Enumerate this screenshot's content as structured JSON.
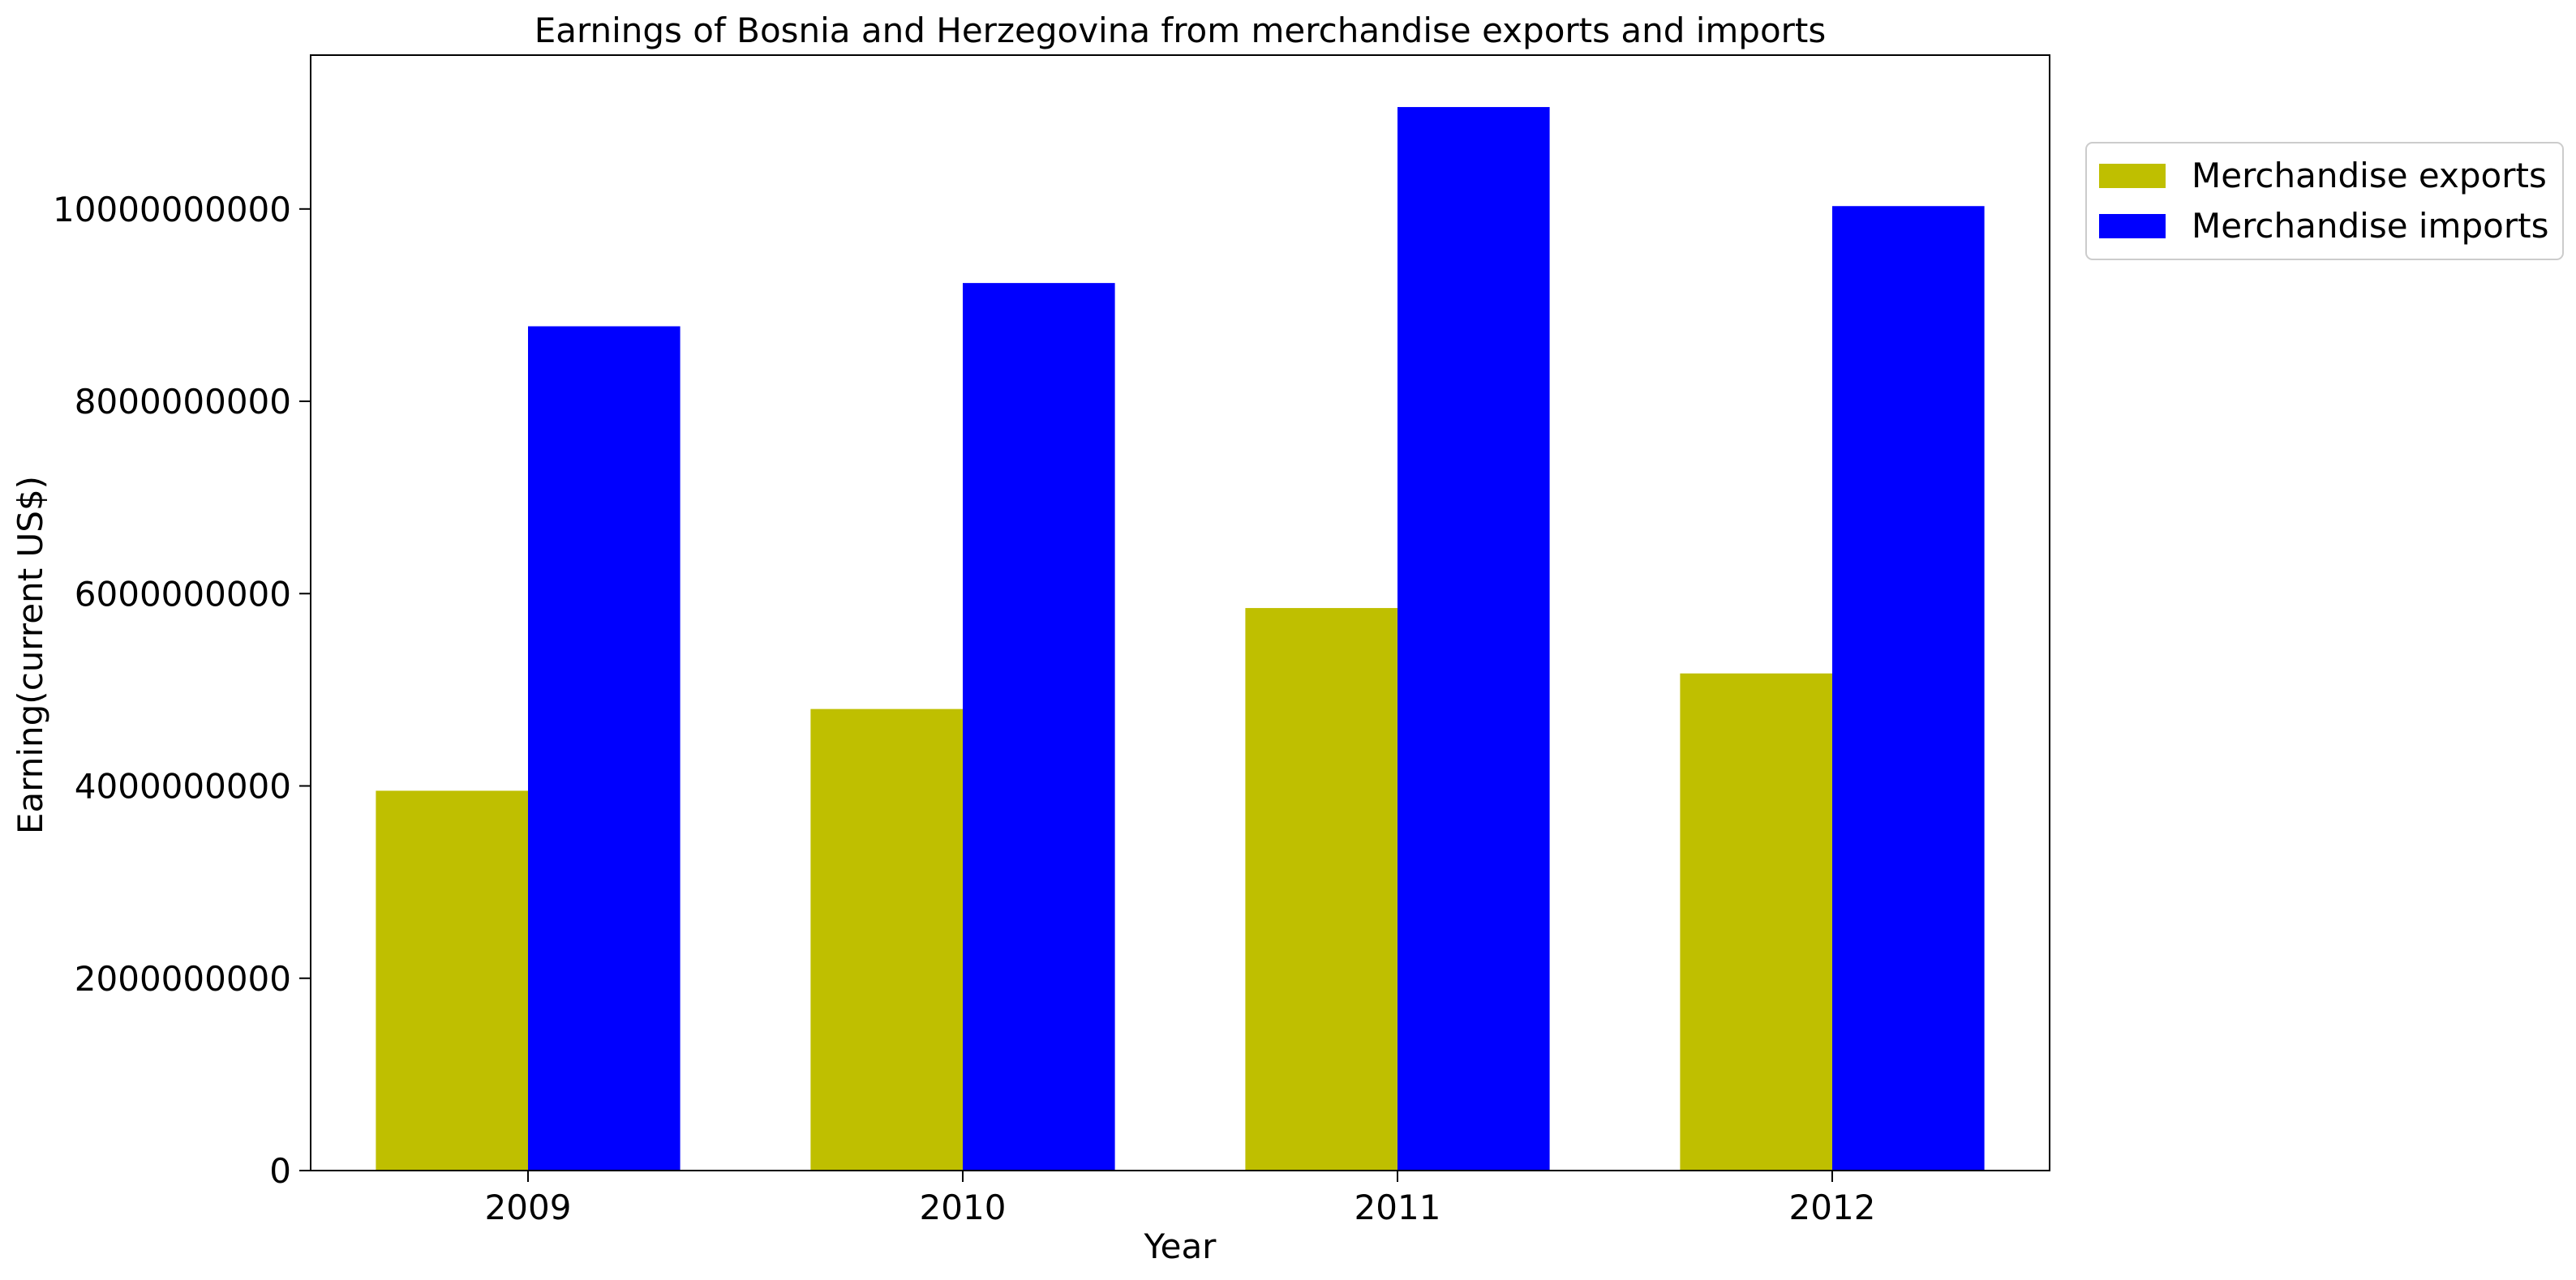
{
  "chart_data": {
    "type": "bar",
    "title": "Earnings of Bosnia and Herzegovina from merchandise exports and imports",
    "xlabel": "Year",
    "ylabel": "Earning(current US$)",
    "categories": [
      "2009",
      "2010",
      "2011",
      "2012"
    ],
    "series": [
      {
        "name": "Merchandise exports",
        "color": "#bfbf00",
        "values": [
          3950000000,
          4800000000,
          5850000000,
          5170000000
        ]
      },
      {
        "name": "Merchandise imports",
        "color": "#0000ff",
        "values": [
          8780000000,
          9230000000,
          11060000000,
          10030000000
        ]
      }
    ],
    "ylim": [
      0,
      11600000000
    ],
    "yticks": [
      0,
      2000000000,
      4000000000,
      6000000000,
      8000000000,
      10000000000
    ],
    "ytick_labels": [
      "0",
      "2000000000",
      "4000000000",
      "6000000000",
      "8000000000",
      "10000000000"
    ],
    "grid": false,
    "legend_position": "outside-top-right"
  }
}
